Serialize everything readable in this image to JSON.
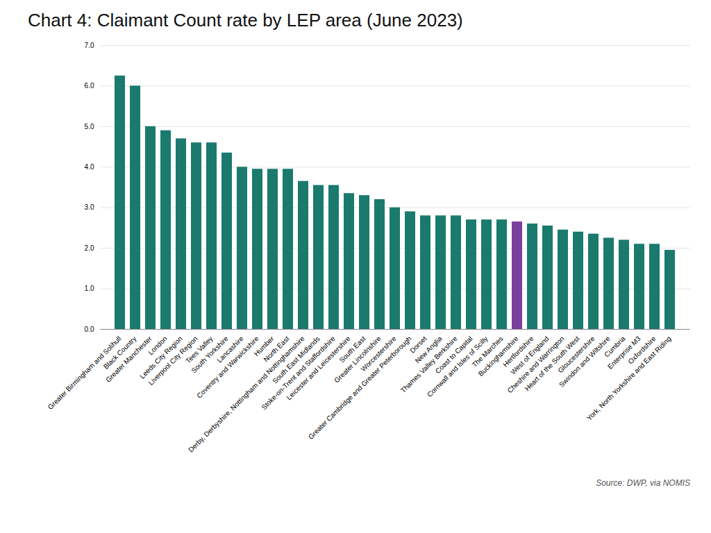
{
  "chart_data": {
    "type": "bar",
    "title": "Chart 4: Claimant Count rate by LEP area (June 2023)",
    "caption": "Source: DWP, via NOMIS",
    "categories": [
      "Greater Birmingham and Solihull",
      "Black Country",
      "Greater Manchester",
      "London",
      "Leeds City Region",
      "Liverpool City Region",
      "Tees Valley",
      "South Yorkshire",
      "Lancashire",
      "Coventry and Warwickshire",
      "Humber",
      "North East",
      "Derby, Derbyshire, Nottingham and Nottinghamshire",
      "South East Midlands",
      "Stoke-on-Trent and Staffordshire",
      "Leicester and Leicestershire",
      "South East",
      "Greater Lincolnshire",
      "Worcestershire",
      "Greater Cambridge and Greater Peterborough",
      "Dorset",
      "New Anglia",
      "Thames Valley Berkshire",
      "Coast to Capital",
      "Cornwall and Isles of Scilly",
      "The Marches",
      "Buckinghamshire",
      "Hertfordshire",
      "West of England",
      "Cheshire and Warrington",
      "Heart of the South West",
      "Gloucestershire",
      "Swindon and Wiltshire",
      "Cumbria",
      "Enterprise M3",
      "Oxfordshire",
      "York, North Yorkshire and East Riding"
    ],
    "values": [
      6.25,
      6.0,
      5.0,
      4.9,
      4.7,
      4.6,
      4.6,
      4.35,
      4.0,
      3.95,
      3.95,
      3.95,
      3.65,
      3.55,
      3.55,
      3.35,
      3.3,
      3.2,
      3.0,
      2.9,
      2.8,
      2.8,
      2.8,
      2.7,
      2.7,
      2.7,
      2.65,
      2.6,
      2.55,
      2.45,
      2.4,
      2.35,
      2.25,
      2.2,
      2.1,
      2.1,
      1.95
    ],
    "colors": [
      "#1a7a6e",
      "#1a7a6e",
      "#1a7a6e",
      "#1a7a6e",
      "#1a7a6e",
      "#1a7a6e",
      "#1a7a6e",
      "#1a7a6e",
      "#1a7a6e",
      "#1a7a6e",
      "#1a7a6e",
      "#1a7a6e",
      "#1a7a6e",
      "#1a7a6e",
      "#1a7a6e",
      "#1a7a6e",
      "#1a7a6e",
      "#1a7a6e",
      "#1a7a6e",
      "#1a7a6e",
      "#1a7a6e",
      "#1a7a6e",
      "#1a7a6e",
      "#1a7a6e",
      "#1a7a6e",
      "#1a7a6e",
      "#7b3f9e",
      "#1a7a6e",
      "#1a7a6e",
      "#1a7a6e",
      "#1a7a6e",
      "#1a7a6e",
      "#1a7a6e",
      "#1a7a6e",
      "#1a7a6e",
      "#1a7a6e",
      "#1a7a6e"
    ],
    "ylim": [
      0,
      7
    ],
    "yticks": [
      {
        "value": 0,
        "label": "0.0"
      },
      {
        "value": 1,
        "label": "1.0"
      },
      {
        "value": 2,
        "label": "2.0"
      },
      {
        "value": 3,
        "label": "3.0"
      },
      {
        "value": 4,
        "label": "4.0"
      },
      {
        "value": 5,
        "label": "5.0"
      },
      {
        "value": 6,
        "label": "6.0"
      },
      {
        "value": 7,
        "label": "7.0"
      }
    ],
    "grid": true
  }
}
